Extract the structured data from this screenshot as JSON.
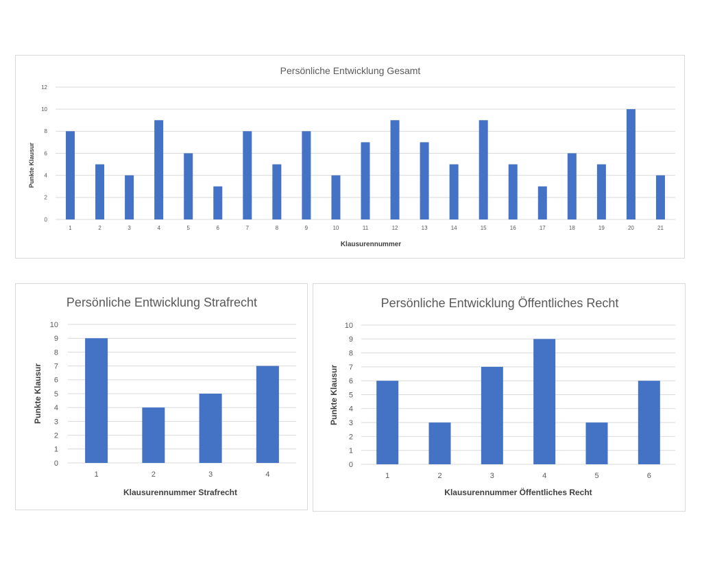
{
  "chart_data": [
    {
      "type": "bar",
      "title": "Persönliche Entwicklung Gesamt",
      "xlabel": "Klausurennummer",
      "ylabel": "Punkte Klausur",
      "categories": [
        "1",
        "2",
        "3",
        "4",
        "5",
        "6",
        "7",
        "8",
        "9",
        "10",
        "11",
        "12",
        "13",
        "14",
        "15",
        "16",
        "17",
        "18",
        "19",
        "20",
        "21"
      ],
      "values": [
        8,
        5,
        4,
        9,
        6,
        3,
        8,
        5,
        8,
        4,
        7,
        9,
        7,
        5,
        9,
        5,
        3,
        6,
        5,
        10,
        4
      ],
      "yticks": [
        0,
        2,
        4,
        6,
        8,
        10,
        12
      ],
      "ylim": [
        0,
        12
      ],
      "grid": true,
      "color": "#4472c4"
    },
    {
      "type": "bar",
      "title": "Persönliche Entwicklung Strafrecht",
      "xlabel": "Klausurennummer Strafrecht",
      "ylabel": "Punkte Klausur",
      "categories": [
        "1",
        "2",
        "3",
        "4"
      ],
      "values": [
        9,
        4,
        5,
        7
      ],
      "yticks": [
        0,
        1,
        2,
        3,
        4,
        5,
        6,
        7,
        8,
        9,
        10
      ],
      "ylim": [
        0,
        10
      ],
      "grid": true,
      "color": "#4472c4"
    },
    {
      "type": "bar",
      "title": "Persönliche Entwicklung Öffentliches Recht",
      "xlabel": "Klausurennummer Öffentliches Recht",
      "ylabel": "Punkte Klausur",
      "categories": [
        "1",
        "2",
        "3",
        "4",
        "5",
        "6"
      ],
      "values": [
        6,
        3,
        7,
        9,
        3,
        6
      ],
      "yticks": [
        0,
        1,
        2,
        3,
        4,
        5,
        6,
        7,
        8,
        9,
        10
      ],
      "ylim": [
        0,
        10
      ],
      "grid": true,
      "color": "#4472c4"
    }
  ]
}
